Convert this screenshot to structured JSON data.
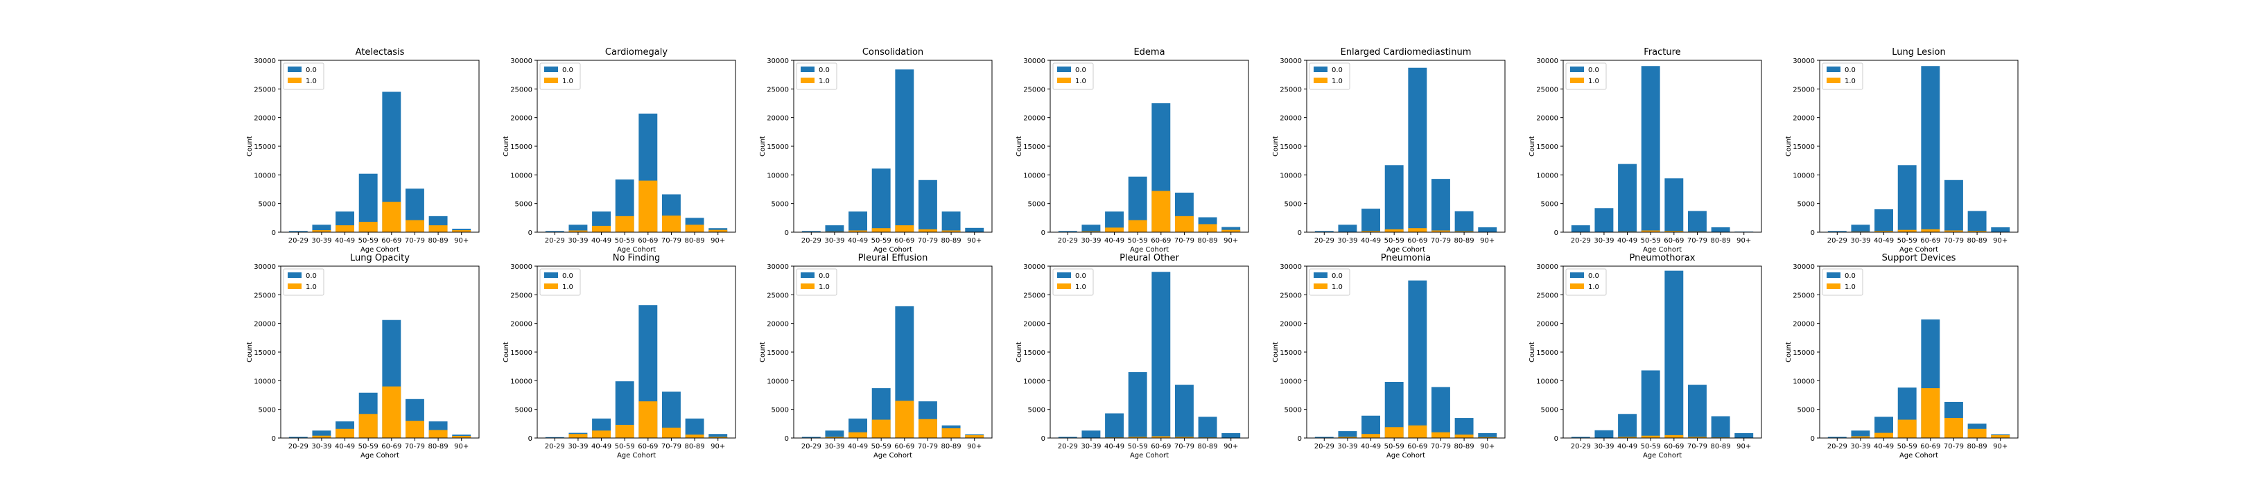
{
  "chart_data": {
    "type": "bar",
    "layout": "2x7 grid of stacked bar charts",
    "categories": [
      "20-29",
      "30-39",
      "40-49",
      "50-59",
      "60-69",
      "70-79",
      "80-89",
      "90+"
    ],
    "xlabel": "Age Cohort",
    "ylabel": "Count",
    "ylim": [
      0,
      30000
    ],
    "yticks": [
      0,
      5000,
      10000,
      15000,
      20000,
      25000,
      30000
    ],
    "legend": {
      "placement": "upper-left",
      "entries": [
        "0.0",
        "1.0"
      ]
    },
    "colors": {
      "0.0": "#1f77b4",
      "1.0": "#ffa500"
    },
    "stacking": "1.0 bar drawn at bottom; total height = 0.0 + 1.0",
    "grid": false,
    "subplots": [
      {
        "title": "Atelectasis",
        "series": [
          {
            "name": "0.0",
            "values": [
              150,
              950,
              2400,
              8400,
              19200,
              5500,
              1600,
              250
            ]
          },
          {
            "name": "1.0",
            "values": [
              50,
              350,
              1200,
              1800,
              5300,
              2100,
              1200,
              350
            ]
          }
        ]
      },
      {
        "title": "Cardiomegaly",
        "series": [
          {
            "name": "0.0",
            "values": [
              150,
              1000,
              2500,
              6400,
              11700,
              3700,
              1200,
              300
            ]
          },
          {
            "name": "1.0",
            "values": [
              50,
              300,
              1100,
              2800,
              9000,
              2900,
              1300,
              400
            ]
          }
        ]
      },
      {
        "title": "Consolidation",
        "series": [
          {
            "name": "0.0",
            "values": [
              200,
              1100,
              3300,
              10400,
              27200,
              8600,
              3300,
              700
            ]
          },
          {
            "name": "1.0",
            "values": [
              0,
              100,
              300,
              700,
              1200,
              500,
              300,
              50
            ]
          }
        ]
      },
      {
        "title": "Edema",
        "series": [
          {
            "name": "0.0",
            "values": [
              200,
              1150,
              2800,
              7600,
              15300,
              4100,
              1200,
              500
            ]
          },
          {
            "name": "1.0",
            "values": [
              0,
              150,
              800,
              2100,
              7200,
              2800,
              1400,
              400
            ]
          }
        ]
      },
      {
        "title": "Enlarged Cardiomediastinum",
        "series": [
          {
            "name": "0.0",
            "values": [
              200,
              1250,
              3900,
              11200,
              28000,
              9000,
              3500,
              800
            ]
          },
          {
            "name": "1.0",
            "values": [
              0,
              50,
              200,
              500,
              700,
              300,
              150,
              50
            ]
          }
        ]
      },
      {
        "title": "Fracture",
        "series": [
          {
            "name": "0.0",
            "values": [
              1200,
              4200,
              11800,
              28700,
              9200,
              3600,
              800,
              100
            ]
          },
          {
            "name": "1.0",
            "values": [
              0,
              0,
              100,
              300,
              200,
              100,
              50,
              0
            ]
          }
        ]
      },
      {
        "title": "Lung Lesion",
        "series": [
          {
            "name": "0.0",
            "values": [
              200,
              1200,
              3800,
              11300,
              28500,
              8800,
              3500,
              800
            ]
          },
          {
            "name": "1.0",
            "values": [
              0,
              100,
              200,
              400,
              500,
              300,
              200,
              50
            ]
          }
        ]
      },
      {
        "title": "Lung Opacity",
        "series": [
          {
            "name": "0.0",
            "values": [
              150,
              900,
              1300,
              3700,
              11600,
              3800,
              1500,
              250
            ]
          },
          {
            "name": "1.0",
            "values": [
              50,
              400,
              1600,
              4200,
              9000,
              3000,
              1400,
              350
            ]
          }
        ]
      },
      {
        "title": "No Finding",
        "series": [
          {
            "name": "0.0",
            "values": [
              100,
              200,
              2100,
              7600,
              16800,
              6300,
              2800,
              500
            ]
          },
          {
            "name": "1.0",
            "values": [
              50,
              700,
              1300,
              2300,
              6400,
              1800,
              600,
              200
            ]
          }
        ]
      },
      {
        "title": "Pleural Effusion",
        "series": [
          {
            "name": "0.0",
            "values": [
              200,
              1100,
              2400,
              5500,
              16500,
              3100,
              500,
              150
            ]
          },
          {
            "name": "1.0",
            "values": [
              0,
              200,
              1000,
              3200,
              6500,
              3300,
              1700,
              500
            ]
          }
        ]
      },
      {
        "title": "Pleural Other",
        "series": [
          {
            "name": "0.0",
            "values": [
              200,
              1300,
              4200,
              11300,
              28700,
              9100,
              3600,
              800
            ]
          },
          {
            "name": "1.0",
            "values": [
              0,
              0,
              100,
              200,
              300,
              200,
              100,
              50
            ]
          }
        ]
      },
      {
        "title": "Pneumonia",
        "series": [
          {
            "name": "0.0",
            "values": [
              200,
              1000,
              3200,
              7900,
              25300,
              7900,
              2900,
              700
            ]
          },
          {
            "name": "1.0",
            "values": [
              0,
              200,
              700,
              1900,
              2200,
              1000,
              600,
              150
            ]
          }
        ]
      },
      {
        "title": "Pneumothorax",
        "series": [
          {
            "name": "0.0",
            "values": [
              200,
              1300,
              4000,
              11400,
              28700,
              9100,
              3700,
              850
            ]
          },
          {
            "name": "1.0",
            "values": [
              0,
              50,
              200,
              400,
              500,
              200,
              100,
              0
            ]
          }
        ]
      },
      {
        "title": "Support Devices",
        "series": [
          {
            "name": "0.0",
            "values": [
              150,
              1000,
              2800,
              5600,
              12000,
              2800,
              900,
              150
            ]
          },
          {
            "name": "1.0",
            "values": [
              50,
              300,
              900,
              3200,
              8700,
              3500,
              1600,
              500
            ]
          }
        ]
      }
    ]
  }
}
